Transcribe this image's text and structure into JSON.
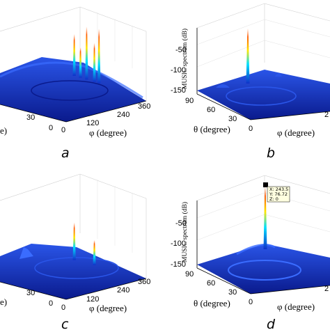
{
  "chart_data": [
    {
      "panel": "a",
      "type": "surface",
      "xlabel": "φ (degree)",
      "ylabel": "θ (degree)",
      "zlabel": "",
      "x_ticks": [
        "0",
        "120",
        "240",
        "360"
      ],
      "y_ticks": [
        "0",
        "30"
      ],
      "z_ticks": [],
      "peaks": [
        {
          "phi": 150,
          "rel_height": 0.75
        },
        {
          "phi": 170,
          "rel_height": 0.55
        },
        {
          "phi": 190,
          "rel_height": 0.95
        },
        {
          "phi": 215,
          "rel_height": 0.7
        },
        {
          "phi": 230,
          "rel_height": 0.98
        }
      ]
    },
    {
      "panel": "b",
      "type": "surface",
      "xlabel": "φ (degree)",
      "ylabel": "θ (degree)",
      "zlabel": "MUSIC spectrum (dB)",
      "x_ticks": [
        "2"
      ],
      "y_ticks": [
        "90",
        "60",
        "30",
        "0"
      ],
      "z_ticks": [
        "-50",
        "-100",
        "-150"
      ],
      "zlim": [
        -160,
        -20
      ],
      "peaks": [
        {
          "phi": 243.5,
          "theta": 76.7,
          "z": -25
        }
      ]
    },
    {
      "panel": "c",
      "type": "surface",
      "xlabel": "φ (degree)",
      "ylabel": "θ (degree)",
      "zlabel": "",
      "x_ticks": [
        "0",
        "120",
        "240",
        "360"
      ],
      "y_ticks": [
        "0",
        "30"
      ],
      "z_ticks": [],
      "peaks": [
        {
          "phi": 150,
          "rel_height": 0.6
        },
        {
          "phi": 215,
          "rel_height": 0.4
        }
      ]
    },
    {
      "panel": "d",
      "type": "surface",
      "xlabel": "φ (degree)",
      "ylabel": "θ (degree)",
      "zlabel": "MUSIC spectrum (dB)",
      "x_ticks": [
        "2"
      ],
      "y_ticks": [
        "90",
        "60",
        "30",
        "0"
      ],
      "z_ticks": [
        "-50",
        "-100",
        "-150"
      ],
      "zlim": [
        -160,
        -20
      ],
      "peaks": [
        {
          "phi": 243.5,
          "theta": 76.72,
          "z": 0
        }
      ],
      "datatip": {
        "x": "X: 243.5",
        "y": "Y: 76.72",
        "z": "Z: 0"
      }
    }
  ],
  "panel_letters": [
    "a",
    "b",
    "c",
    "d"
  ],
  "colors": {
    "surface_base": "#1030c8",
    "surface_dark": "#0a1a8c",
    "peak_top": "#ff5a00",
    "peak_mid": "#ffe600",
    "peak_cyan": "#00e0ff"
  }
}
